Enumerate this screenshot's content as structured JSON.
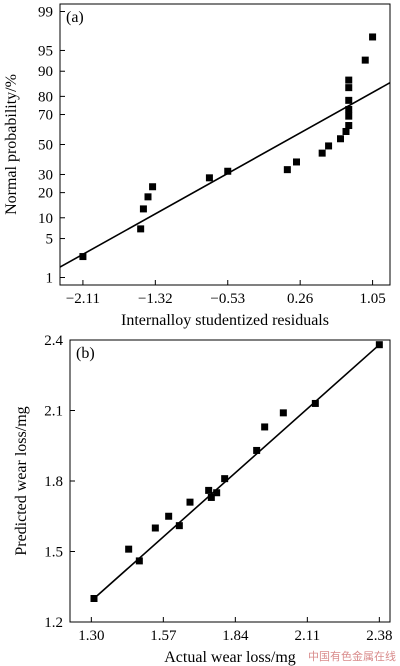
{
  "chart_data": [
    {
      "type": "scatter",
      "panel_label": "(a)",
      "xlabel": "Internalloy studentized residuals",
      "ylabel": "Normal probability/%",
      "x_ticks": [
        -2.11,
        -1.32,
        -0.53,
        0.26,
        1.05
      ],
      "x_tick_labels": [
        "−2.11",
        "−1.32",
        "−0.53",
        "0.26",
        "1.05"
      ],
      "y_ticks": [
        1,
        5,
        10,
        20,
        30,
        50,
        70,
        80,
        90,
        95,
        99
      ],
      "y_tick_labels": [
        "1",
        "5",
        "10",
        "20",
        "30",
        "50",
        "70",
        "80",
        "90",
        "95",
        "99"
      ],
      "y_scale": "normal-probability",
      "xlim": [
        -2.36,
        1.24
      ],
      "grid": false,
      "points": [
        {
          "x": -2.11,
          "y": 2.5
        },
        {
          "x": -1.48,
          "y": 7
        },
        {
          "x": -1.45,
          "y": 13
        },
        {
          "x": -1.4,
          "y": 18
        },
        {
          "x": -1.35,
          "y": 23
        },
        {
          "x": -0.73,
          "y": 28
        },
        {
          "x": -0.53,
          "y": 32
        },
        {
          "x": 0.12,
          "y": 33
        },
        {
          "x": 0.22,
          "y": 38
        },
        {
          "x": 0.5,
          "y": 44
        },
        {
          "x": 0.57,
          "y": 49
        },
        {
          "x": 0.7,
          "y": 54
        },
        {
          "x": 0.76,
          "y": 59
        },
        {
          "x": 0.79,
          "y": 63
        },
        {
          "x": 0.79,
          "y": 69
        },
        {
          "x": 0.79,
          "y": 73
        },
        {
          "x": 0.79,
          "y": 78
        },
        {
          "x": 0.79,
          "y": 84
        },
        {
          "x": 0.79,
          "y": 87
        },
        {
          "x": 0.97,
          "y": 93
        },
        {
          "x": 1.05,
          "y": 97
        }
      ],
      "fit_line": {
        "x": [
          -2.36,
          1.24
        ],
        "y": [
          1.6,
          86
        ]
      }
    },
    {
      "type": "scatter",
      "panel_label": "(b)",
      "xlabel": "Actual wear loss/mg",
      "ylabel": "Predicted wear loss/mg",
      "x_ticks": [
        1.3,
        1.57,
        1.84,
        2.11,
        2.38
      ],
      "x_tick_labels": [
        "1.30",
        "1.57",
        "1.84",
        "2.11",
        "2.38"
      ],
      "y_ticks": [
        1.2,
        1.5,
        1.8,
        2.1,
        2.4
      ],
      "y_tick_labels": [
        "1.2",
        "1.5",
        "1.8",
        "2.1",
        "2.4"
      ],
      "xlim": [
        1.22,
        2.42
      ],
      "ylim": [
        1.2,
        2.4
      ],
      "grid": false,
      "points": [
        {
          "x": 1.31,
          "y": 1.3
        },
        {
          "x": 1.44,
          "y": 1.51
        },
        {
          "x": 1.48,
          "y": 1.46
        },
        {
          "x": 1.54,
          "y": 1.6
        },
        {
          "x": 1.59,
          "y": 1.65
        },
        {
          "x": 1.63,
          "y": 1.61
        },
        {
          "x": 1.67,
          "y": 1.71
        },
        {
          "x": 1.74,
          "y": 1.76
        },
        {
          "x": 1.75,
          "y": 1.73
        },
        {
          "x": 1.77,
          "y": 1.75
        },
        {
          "x": 1.8,
          "y": 1.81
        },
        {
          "x": 1.92,
          "y": 1.93
        },
        {
          "x": 1.95,
          "y": 2.03
        },
        {
          "x": 2.02,
          "y": 2.09
        },
        {
          "x": 2.14,
          "y": 2.13
        },
        {
          "x": 2.38,
          "y": 2.38
        }
      ],
      "fit_line": {
        "x": [
          1.31,
          2.38
        ],
        "y": [
          1.3,
          2.38
        ]
      }
    }
  ],
  "watermark": "中国有色金属在线"
}
